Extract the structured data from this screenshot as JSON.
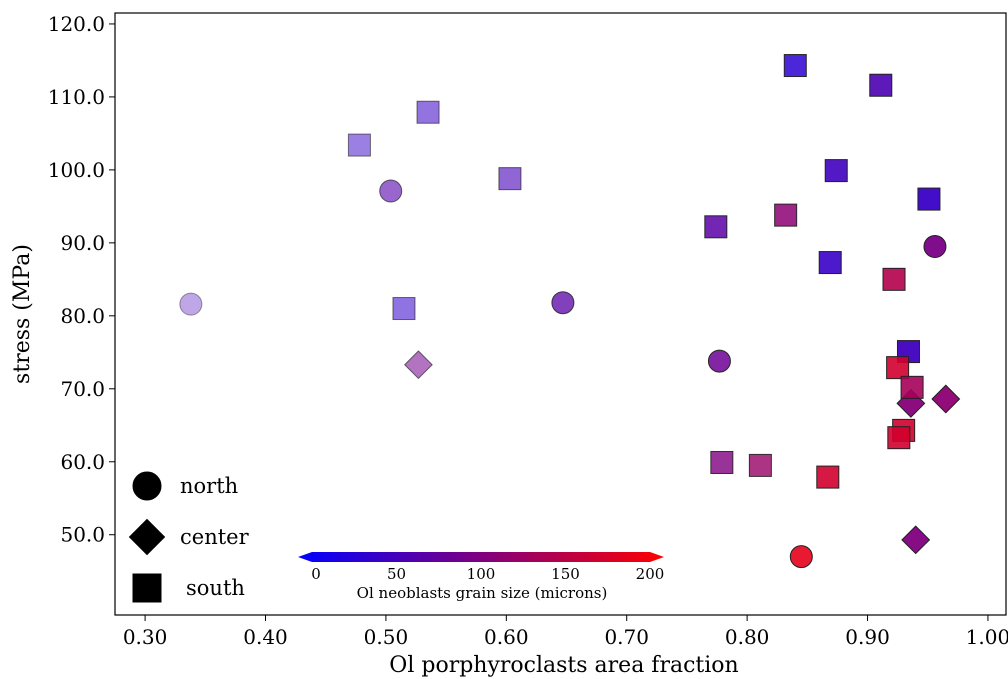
{
  "chart_data": {
    "type": "scatter",
    "xlabel": "Ol porphyroclasts area fraction",
    "ylabel": "stress (MPa)",
    "xlim": [
      0.275,
      1.015
    ],
    "ylim": [
      39.0,
      121.5
    ],
    "xticks": [
      0.3,
      0.4,
      0.5,
      0.6,
      0.7,
      0.8,
      0.9,
      1.0
    ],
    "xtick_labels": [
      "0.30",
      "0.40",
      "0.50",
      "0.60",
      "0.70",
      "0.80",
      "0.90",
      "1.00"
    ],
    "yticks": [
      50,
      60,
      70,
      80,
      90,
      100,
      110,
      120
    ],
    "ytick_labels": [
      "50.0",
      "60.0",
      "70.0",
      "80.0",
      "90.0",
      "100.0",
      "110.0",
      "120.0"
    ],
    "grid": false,
    "legend": {
      "placement": "bottom-left",
      "entries": [
        {
          "label": "north",
          "marker": "circle"
        },
        {
          "label": "center",
          "marker": "diamond"
        },
        {
          "label": "south",
          "marker": "square"
        }
      ]
    },
    "colorbar": {
      "label": "Ol neoblasts grain size (microns)",
      "min": 0,
      "max": 200,
      "ticks": [
        0,
        50,
        100,
        150,
        200
      ],
      "tick_labels": [
        "0",
        "50",
        "100",
        "150",
        "200"
      ],
      "colors": [
        "#0000ff",
        "#ff0000"
      ],
      "extend": "both",
      "orientation": "horizontal",
      "placement": "bottom-center"
    },
    "series": [
      {
        "name": "north",
        "marker": "circle",
        "points": [
          {
            "x": 0.338,
            "y": 81.6,
            "c": 55,
            "alpha": 0.35
          },
          {
            "x": 0.504,
            "y": 97.1,
            "c": 65,
            "alpha": 0.6
          },
          {
            "x": 0.647,
            "y": 81.8,
            "c": 70,
            "alpha": 0.75
          },
          {
            "x": 0.777,
            "y": 73.8,
            "c": 85,
            "alpha": 0.85
          },
          {
            "x": 0.956,
            "y": 89.5,
            "c": 95,
            "alpha": 0.95
          },
          {
            "x": 0.845,
            "y": 47.0,
            "c": 180,
            "alpha": 0.9
          }
        ]
      },
      {
        "name": "center",
        "marker": "diamond",
        "points": [
          {
            "x": 0.527,
            "y": 73.3,
            "c": 90,
            "alpha": 0.55
          },
          {
            "x": 0.936,
            "y": 68.0,
            "c": 105,
            "alpha": 0.95
          },
          {
            "x": 0.965,
            "y": 68.6,
            "c": 110,
            "alpha": 0.95
          },
          {
            "x": 0.94,
            "y": 49.3,
            "c": 100,
            "alpha": 0.95
          }
        ]
      },
      {
        "name": "south",
        "marker": "square",
        "points": [
          {
            "x": 0.478,
            "y": 103.4,
            "c": 45,
            "alpha": 0.5
          },
          {
            "x": 0.535,
            "y": 107.9,
            "c": 45,
            "alpha": 0.55
          },
          {
            "x": 0.603,
            "y": 98.8,
            "c": 55,
            "alpha": 0.6
          },
          {
            "x": 0.515,
            "y": 81.0,
            "c": 40,
            "alpha": 0.55
          },
          {
            "x": 0.84,
            "y": 114.3,
            "c": 35,
            "alpha": 0.85
          },
          {
            "x": 0.911,
            "y": 111.6,
            "c": 60,
            "alpha": 0.9
          },
          {
            "x": 0.874,
            "y": 99.9,
            "c": 50,
            "alpha": 0.9
          },
          {
            "x": 0.951,
            "y": 96.0,
            "c": 45,
            "alpha": 0.95
          },
          {
            "x": 0.774,
            "y": 92.2,
            "c": 70,
            "alpha": 0.85
          },
          {
            "x": 0.832,
            "y": 93.8,
            "c": 110,
            "alpha": 0.85
          },
          {
            "x": 0.869,
            "y": 87.3,
            "c": 45,
            "alpha": 0.9
          },
          {
            "x": 0.922,
            "y": 85.0,
            "c": 140,
            "alpha": 0.9
          },
          {
            "x": 0.934,
            "y": 75.1,
            "c": 50,
            "alpha": 0.95
          },
          {
            "x": 0.925,
            "y": 72.9,
            "c": 165,
            "alpha": 0.9
          },
          {
            "x": 0.937,
            "y": 70.2,
            "c": 130,
            "alpha": 0.9
          },
          {
            "x": 0.93,
            "y": 64.3,
            "c": 165,
            "alpha": 0.9
          },
          {
            "x": 0.926,
            "y": 63.3,
            "c": 165,
            "alpha": 0.9
          },
          {
            "x": 0.779,
            "y": 59.9,
            "c": 100,
            "alpha": 0.8
          },
          {
            "x": 0.811,
            "y": 59.5,
            "c": 120,
            "alpha": 0.8
          },
          {
            "x": 0.867,
            "y": 57.9,
            "c": 165,
            "alpha": 0.9
          }
        ]
      }
    ]
  }
}
